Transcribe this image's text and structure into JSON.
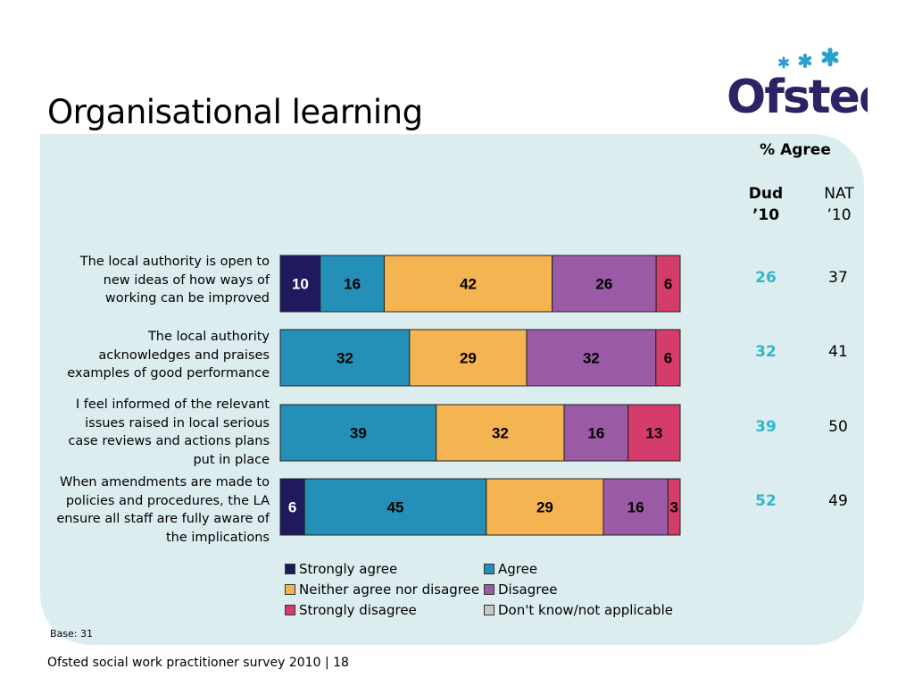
{
  "title": "Organisational learning",
  "logo": {
    "text": "Ofsted",
    "color": "#2b2364",
    "star_color": "#2aa0cf"
  },
  "header": {
    "agree": "% Agree",
    "col1": [
      "Dud",
      "’10"
    ],
    "col2": [
      "NAT",
      "’10"
    ]
  },
  "chart_data": {
    "type": "bar",
    "orientation": "horizontal",
    "stacked": true,
    "xlim": [
      0,
      100
    ],
    "categories": [
      "The local authority is open to new ideas of how ways of working can be improved",
      "The local authority acknowledges and praises examples of good performance",
      "I feel informed of the relevant issues raised in local serious case reviews and actions plans put in place",
      "When amendments are made to policies and procedures, the LA ensure all staff are fully aware of the implications"
    ],
    "series": [
      {
        "name": "Strongly agree",
        "color": "#1f1a5e",
        "values": [
          10,
          0,
          0,
          6
        ]
      },
      {
        "name": "Agree",
        "color": "#2490b8",
        "values": [
          16,
          32,
          39,
          45
        ]
      },
      {
        "name": "Neither agree nor disagree",
        "color": "#f5b452",
        "values": [
          42,
          29,
          32,
          29
        ]
      },
      {
        "name": "Disagree",
        "color": "#9a5aa6",
        "values": [
          26,
          32,
          16,
          16
        ]
      },
      {
        "name": "Strongly disagree",
        "color": "#d43d6b",
        "values": [
          6,
          6,
          13,
          3
        ]
      },
      {
        "name": "Don't know/not applicable",
        "color": "#c8c8c8",
        "values": [
          0,
          0,
          0,
          0
        ]
      }
    ],
    "agree_dud": [
      "26",
      "32",
      "39",
      "52"
    ],
    "agree_nat": [
      "37",
      "41",
      "50",
      "49"
    ]
  },
  "row_labels": [
    [
      "The local authority is open to",
      "new ideas of how ways of",
      "working can be improved"
    ],
    [
      "The local authority",
      "acknowledges and praises",
      "examples of good performance"
    ],
    [
      "I feel informed of the relevant",
      "issues raised in local serious",
      "case reviews and actions plans",
      "put in place"
    ],
    [
      "When amendments are made to",
      "policies and procedures, the LA",
      "ensure all staff are fully aware of",
      "the implications"
    ]
  ],
  "base": "Base: 31",
  "footer": "Ofsted social work practitioner survey 2010  |  18"
}
